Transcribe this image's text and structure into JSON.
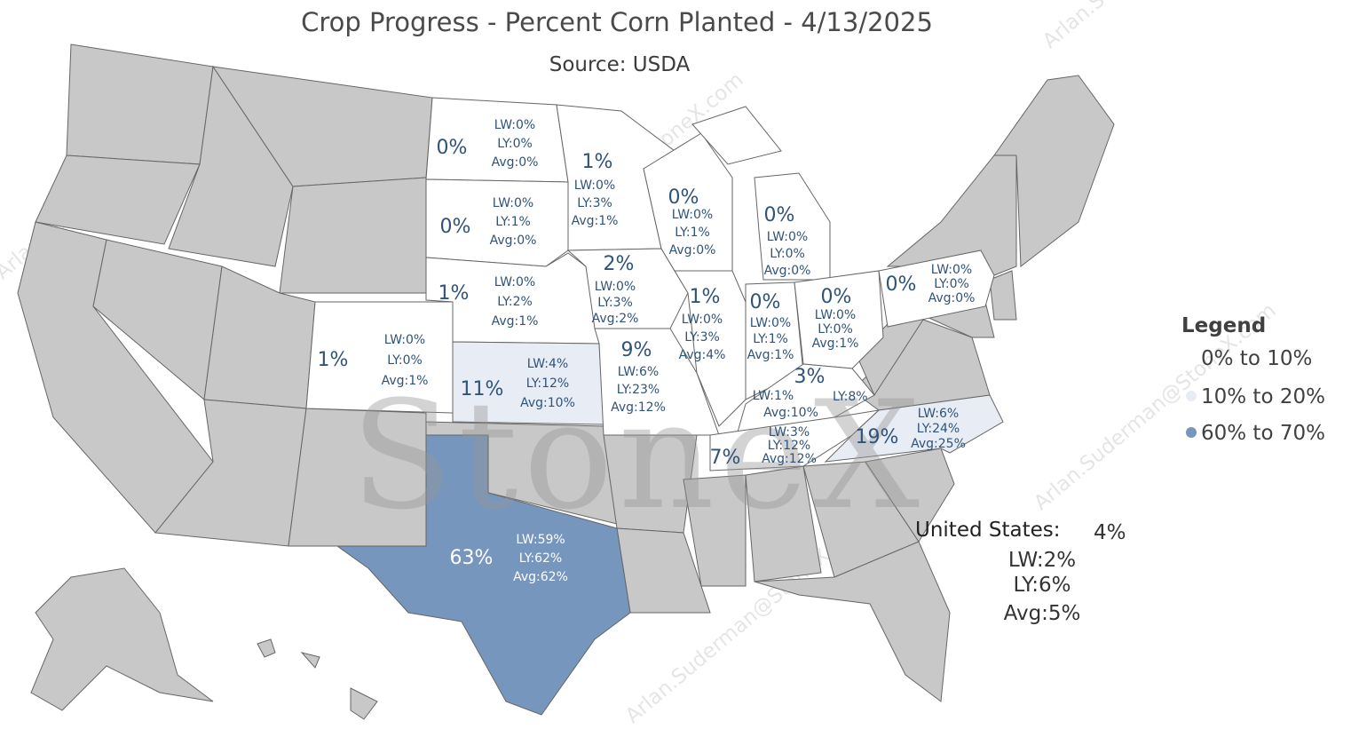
{
  "title": "Crop Progress - Percent Corn Planted - 4/13/2025",
  "subtitle": "Source: USDA",
  "watermark": "StoneX",
  "watermark_email": "Arlan.Suderman@StoneX.com",
  "colors": {
    "no_data": "#c8c8c8",
    "range_0_10": "#ffffff",
    "range_10_20": "#e8edf5",
    "range_60_70": "#7696be",
    "label_text": "#2f5379"
  },
  "legend": {
    "title": "Legend",
    "items": [
      {
        "label": "0% to 10%",
        "color": "#ffffff"
      },
      {
        "label": "10% to 20%",
        "color": "#e8edf5"
      },
      {
        "label": "60% to 70%",
        "color": "#7696be"
      }
    ]
  },
  "national": {
    "label": "United States:",
    "value": "4%",
    "lw": "LW:2%",
    "ly": "LY:6%",
    "avg": "Avg:5%"
  },
  "states": [
    {
      "id": "ND",
      "pct": "0%",
      "lw": "LW:0%",
      "ly": "LY:0%",
      "avg": "Avg:0%"
    },
    {
      "id": "SD",
      "pct": "0%",
      "lw": "LW:0%",
      "ly": "LY:1%",
      "avg": "Avg:0%"
    },
    {
      "id": "NE",
      "pct": "1%",
      "lw": "LW:0%",
      "ly": "LY:2%",
      "avg": "Avg:1%"
    },
    {
      "id": "CO",
      "pct": "1%",
      "lw": "LW:0%",
      "ly": "LY:0%",
      "avg": "Avg:1%"
    },
    {
      "id": "KS",
      "pct": "11%",
      "lw": "LW:4%",
      "ly": "LY:12%",
      "avg": "Avg:10%"
    },
    {
      "id": "TX",
      "pct": "63%",
      "lw": "LW:59%",
      "ly": "LY:62%",
      "avg": "Avg:62%"
    },
    {
      "id": "MN",
      "pct": "1%",
      "lw": "LW:0%",
      "ly": "LY:3%",
      "avg": "Avg:1%"
    },
    {
      "id": "IA",
      "pct": "2%",
      "lw": "LW:0%",
      "ly": "LY:3%",
      "avg": "Avg:2%"
    },
    {
      "id": "MO",
      "pct": "9%",
      "lw": "LW:6%",
      "ly": "LY:23%",
      "avg": "Avg:12%"
    },
    {
      "id": "WI",
      "pct": "0%",
      "lw": "LW:0%",
      "ly": "LY:1%",
      "avg": "Avg:0%"
    },
    {
      "id": "IL",
      "pct": "1%",
      "lw": "LW:0%",
      "ly": "LY:3%",
      "avg": "Avg:4%"
    },
    {
      "id": "MI",
      "pct": "0%",
      "lw": "LW:0%",
      "ly": "LY:0%",
      "avg": "Avg:0%"
    },
    {
      "id": "IN",
      "pct": "0%",
      "lw": "LW:0%",
      "ly": "LY:1%",
      "avg": "Avg:1%"
    },
    {
      "id": "OH",
      "pct": "0%",
      "lw": "LW:0%",
      "ly": "LY:0%",
      "avg": "Avg:1%"
    },
    {
      "id": "KY",
      "pct": "3%",
      "lw": "LW:1%",
      "ly": "LY:8%",
      "avg": "Avg:10%"
    },
    {
      "id": "TN",
      "pct": "7%",
      "lw": "LW:3%",
      "ly": "LY:12%",
      "avg": "Avg:12%"
    },
    {
      "id": "NC",
      "pct": "19%",
      "lw": "LW:6%",
      "ly": "LY:24%",
      "avg": "Avg:25%"
    },
    {
      "id": "PA",
      "pct": "0%",
      "lw": "LW:0%",
      "ly": "LY:0%",
      "avg": "Avg:0%"
    }
  ]
}
